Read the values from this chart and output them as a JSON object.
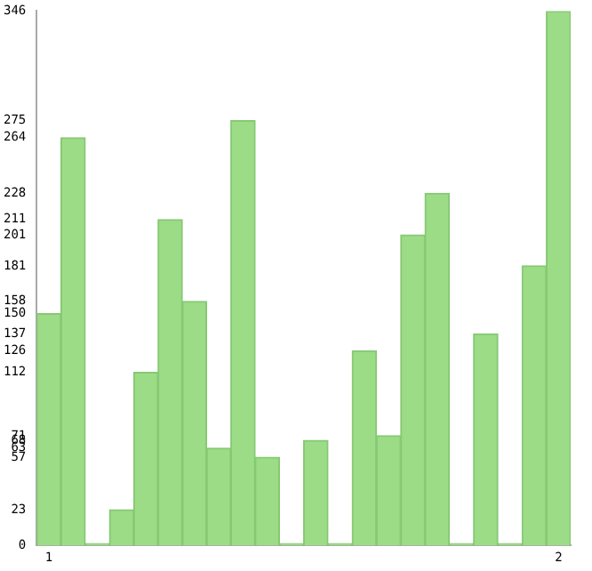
{
  "chart_data": {
    "type": "bar",
    "categories": [
      "1",
      null,
      null,
      null,
      null,
      null,
      null,
      null,
      null,
      null,
      null,
      null,
      null,
      null,
      null,
      null,
      null,
      null,
      null,
      null,
      null,
      "2"
    ],
    "values": [
      150,
      264,
      0,
      23,
      112,
      211,
      158,
      63,
      275,
      57,
      0,
      68,
      0,
      126,
      71,
      201,
      228,
      0,
      137,
      0,
      181,
      346
    ],
    "color": "#9ddc87",
    "ylim": [
      0,
      346
    ],
    "yticks": [
      0,
      23,
      57,
      63,
      68,
      71,
      112,
      126,
      137,
      150,
      158,
      181,
      201,
      211,
      228,
      264,
      275,
      346
    ],
    "grid": false
  }
}
